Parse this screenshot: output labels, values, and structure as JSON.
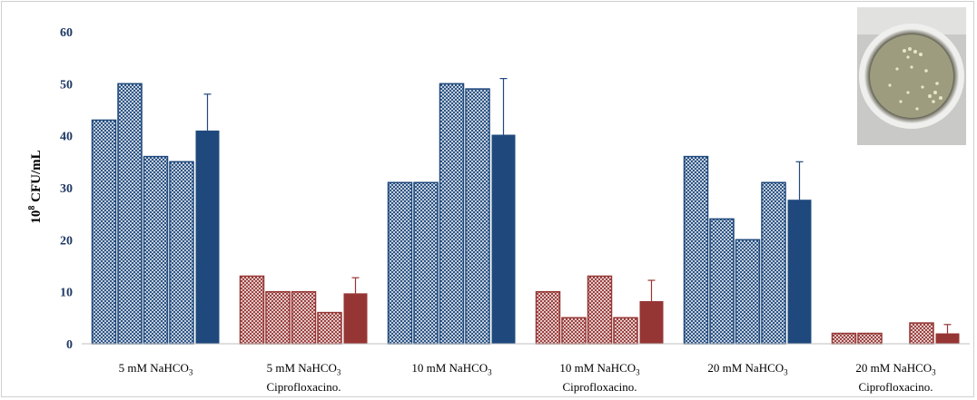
{
  "chart_data": {
    "type": "bar",
    "ylabel_base": "10",
    "ylabel_exp": "8",
    "ylabel_rest": " CFU/mL",
    "ylim": [
      0,
      60
    ],
    "yticks": [
      "0",
      "10",
      "20",
      "30",
      "40",
      "50",
      "60"
    ],
    "grid": false,
    "categories": [
      {
        "line1": "5 mM NaHCO",
        "sub": "3",
        "line2": "",
        "kind": "blue",
        "replicates": [
          43,
          50,
          36,
          35
        ],
        "mean": 41,
        "error": 7
      },
      {
        "line1": "5 mM NaHCO",
        "sub": "3",
        "line2": "Ciprofloxacino.",
        "kind": "red",
        "replicates": [
          13,
          10,
          10,
          6
        ],
        "mean": 9.7,
        "error": 3
      },
      {
        "line1": "10 mM NaHCO",
        "sub": "3",
        "line2": "",
        "kind": "blue",
        "replicates": [
          31,
          31,
          50,
          49
        ],
        "mean": 40.2,
        "error": 10.8
      },
      {
        "line1": "10 mM NaHCO",
        "sub": "3",
        "line2": "Ciprofloxacino.",
        "kind": "red",
        "replicates": [
          10,
          5,
          13,
          5
        ],
        "mean": 8.2,
        "error": 4
      },
      {
        "line1": "20 mM NaHCO",
        "sub": "3",
        "line2": "",
        "kind": "blue",
        "replicates": [
          36,
          24,
          20,
          31
        ],
        "mean": 27.7,
        "error": 7.3
      },
      {
        "line1": "20 mM NaHCO",
        "sub": "3",
        "line2": "Ciprofloxacino.",
        "kind": "red",
        "replicates": [
          2,
          2,
          0,
          4
        ],
        "mean": 2,
        "error": 1.7
      }
    ],
    "colors": {
      "blue": "#1f497d",
      "red": "#963634",
      "axis": "#bfbfbf",
      "tick": "#1f3864"
    }
  },
  "inset": {
    "icon": "petri-dish-photo"
  }
}
